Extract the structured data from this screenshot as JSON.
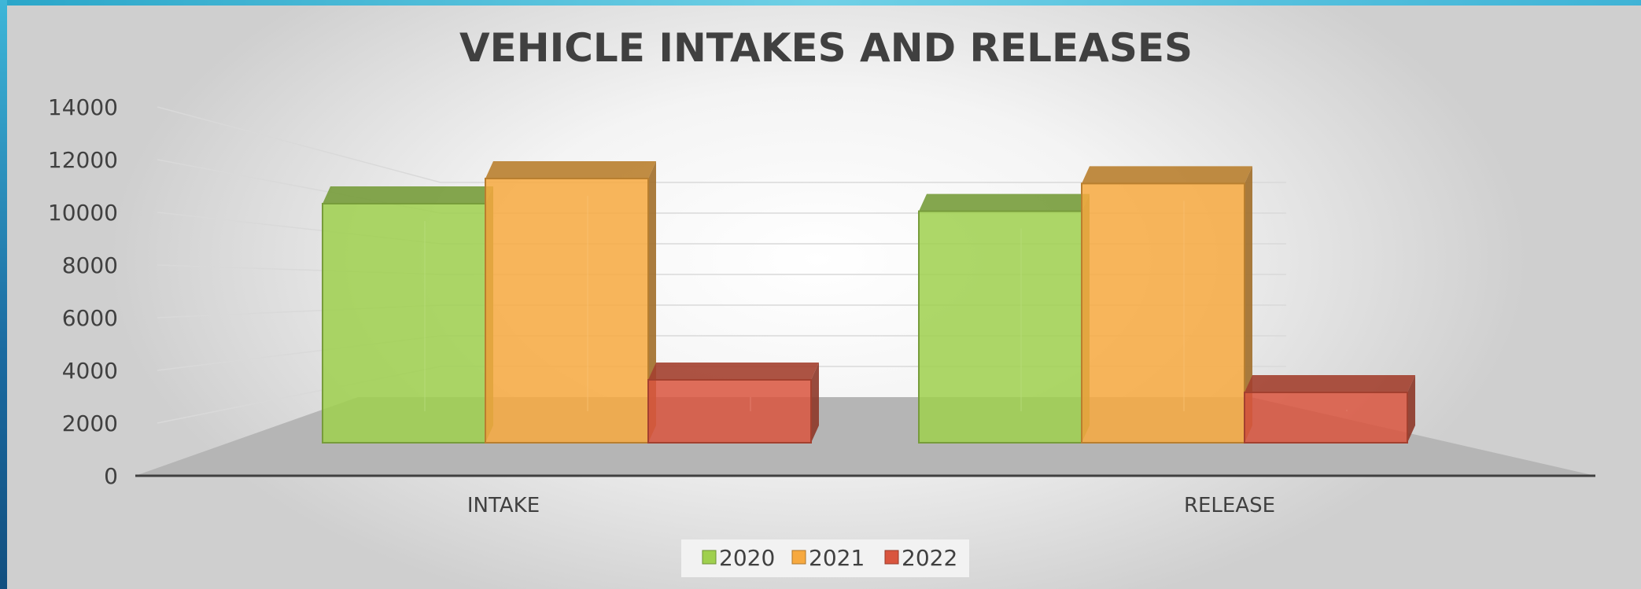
{
  "chart_data": {
    "type": "bar",
    "title": "VEHICLE INTAKES AND RELEASES",
    "categories": [
      "INTAKE",
      "RELEASE"
    ],
    "series": [
      {
        "name": "2020",
        "values": [
          9500,
          9200
        ],
        "color": "#9fd04e"
      },
      {
        "name": "2021",
        "values": [
          10500,
          10300
        ],
        "color": "#f7a93f"
      },
      {
        "name": "2022",
        "values": [
          2500,
          2000
        ],
        "color": "#d9553e"
      }
    ],
    "ylim": [
      0,
      14000
    ],
    "yticks": [
      0,
      2000,
      4000,
      6000,
      8000,
      10000,
      12000,
      14000
    ],
    "grid": true,
    "legend_position": "bottom",
    "projection": "3d-perspective"
  }
}
